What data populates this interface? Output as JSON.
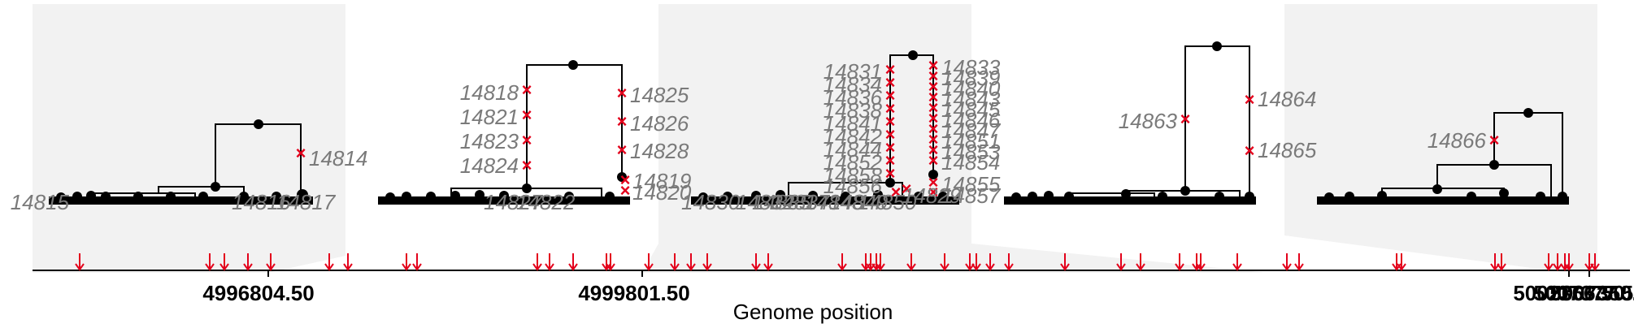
{
  "figure": {
    "x_axis": {
      "label": "Genome position",
      "tick_labels": [
        "4996804.50",
        "4999801.50",
        "5002366.50",
        "5007377.50",
        "5007350.50"
      ]
    },
    "trees": [
      {
        "id": "tree-1",
        "mutation_labels": [
          "14814",
          "14815",
          "14816",
          "14817"
        ]
      },
      {
        "id": "tree-2",
        "mutation_labels": [
          "14818",
          "14821",
          "14823",
          "14824",
          "14825",
          "14826",
          "14828",
          "14819",
          "14820",
          "14827",
          "14822"
        ]
      },
      {
        "id": "tree-3",
        "mutation_labels": [
          "14831",
          "14834",
          "14836",
          "14838",
          "14841",
          "14842",
          "14844",
          "14852",
          "14858",
          "14833",
          "14839",
          "14840",
          "14843",
          "14845",
          "14846",
          "14847",
          "14851",
          "14853",
          "14854",
          "14855",
          "14856",
          "14829",
          "14857",
          "14830",
          "14832",
          "14835",
          "14837",
          "14848",
          "14849",
          "14850"
        ]
      },
      {
        "id": "tree-4",
        "mutation_labels": [
          "14863",
          "14864",
          "14865"
        ]
      },
      {
        "id": "tree-5",
        "mutation_labels": [
          "14866"
        ]
      }
    ],
    "site_markers": {
      "count": 58,
      "color": "#e3001b"
    },
    "colors": {
      "mutation": "#e3001b",
      "tree_line": "#000000",
      "panel_background": "#f2f2f2",
      "label_gray": "#7a7a7a"
    }
  }
}
